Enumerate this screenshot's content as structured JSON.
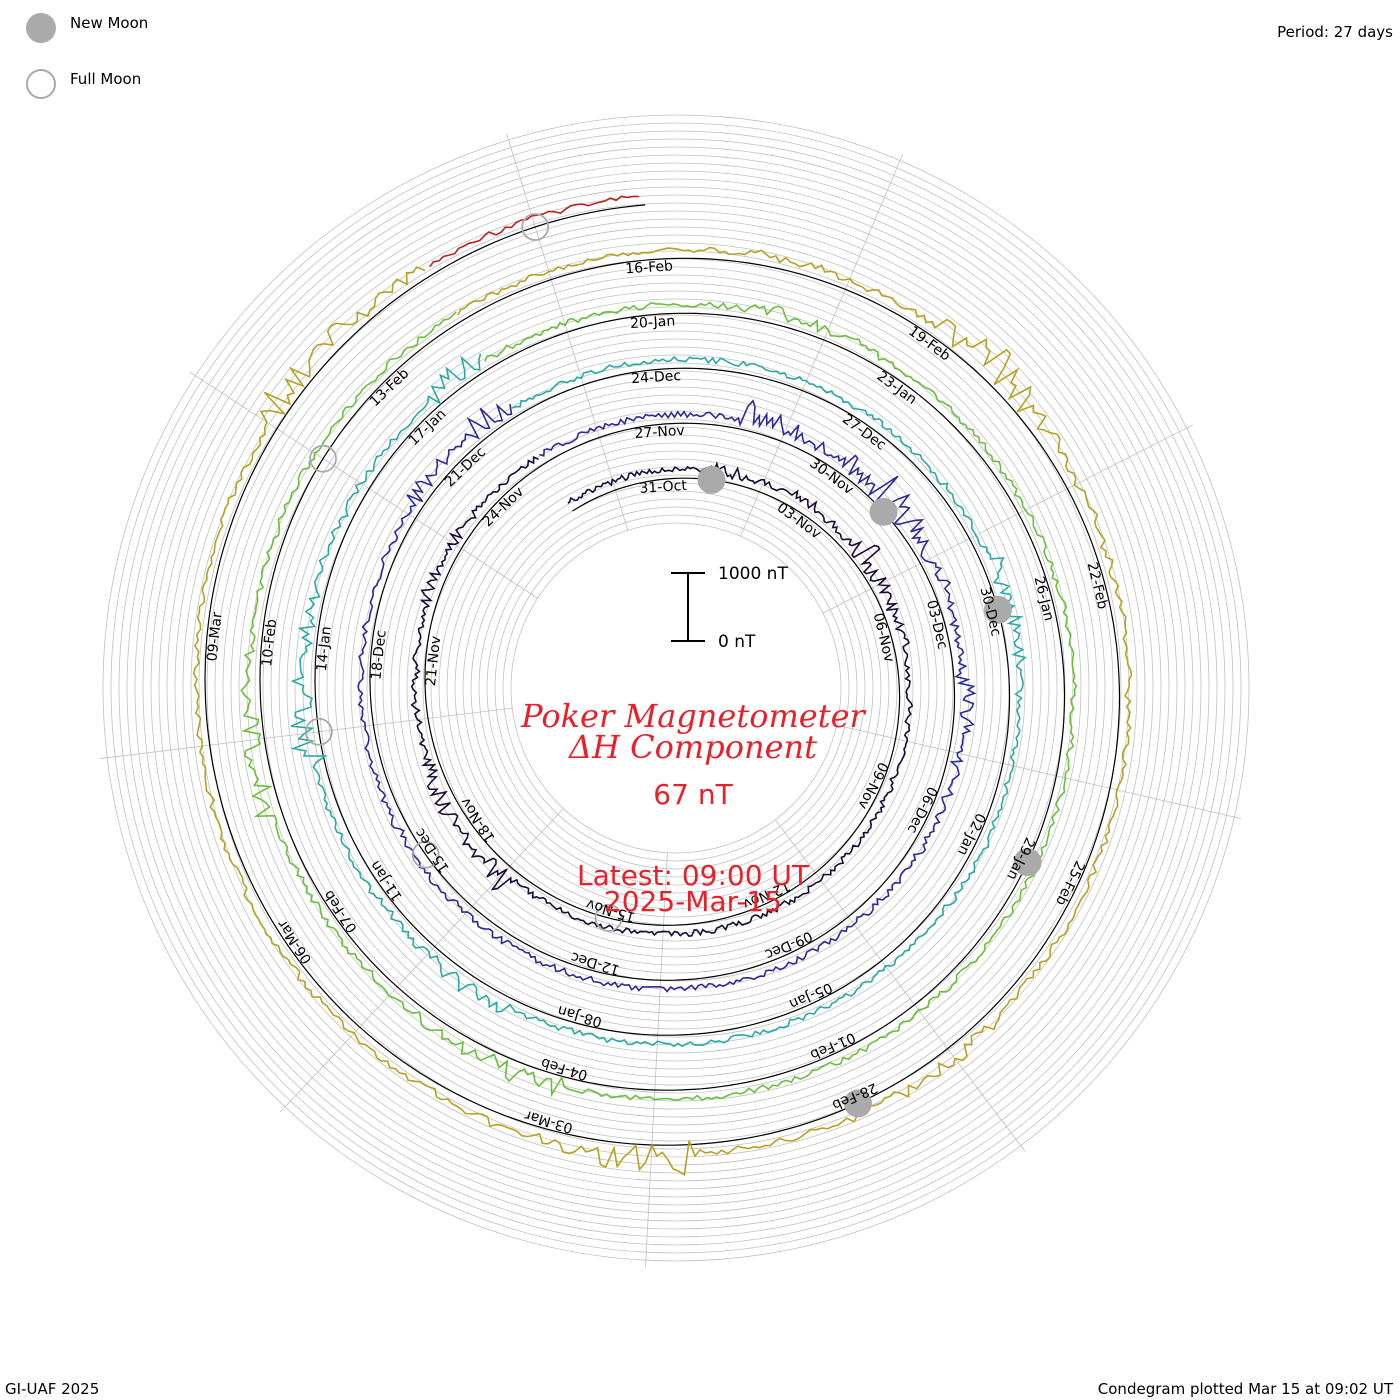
{
  "legend": {
    "new_moon_label": "New Moon",
    "full_moon_label": "Full Moon"
  },
  "header": {
    "period": "Period: 27 days"
  },
  "footer": {
    "credit": "GI-UAF 2025",
    "plotted": "Condegram plotted Mar 15 at 09:02 UT"
  },
  "scale_bar": {
    "top_label": "1000 nT",
    "bottom_label": "0 nT"
  },
  "title": {
    "line1": "Poker Magnetometer",
    "line2": "ΔH Component",
    "current_value": "67 nT",
    "latest": "Latest: 09:00 UT",
    "date": "2025-Mar-15"
  },
  "colors": {
    "title": "#e8202a",
    "moon_fill": "#aaaaaa",
    "grid": "#c0c0c0"
  },
  "chart_data": {
    "type": "line",
    "subtype": "condegram-spiral",
    "title": "Poker Magnetometer ΔH Component",
    "period_days": 27,
    "units": "nT",
    "scale_bar_nT": [
      0,
      1000
    ],
    "cycles": [
      {
        "start": "2024-10-29",
        "color": "#1a0a3a",
        "labels": [
          "31-Oct",
          "03-Nov",
          "06-Nov",
          "09-Nov",
          "12-Nov",
          "15-Nov",
          "18-Nov",
          "21-Nov",
          "24-Nov"
        ]
      },
      {
        "start": "2024-11-25",
        "color": "#2a2a9a",
        "labels": [
          "27-Nov",
          "30-Nov",
          "03-Dec",
          "06-Dec",
          "09-Dec",
          "12-Dec",
          "15-Dec",
          "18-Dec",
          "21-Dec"
        ]
      },
      {
        "start": "2024-12-22",
        "color": "#2aa8a8",
        "labels": [
          "24-Dec",
          "27-Dec",
          "30-Dec",
          "02-Jan",
          "05-Jan",
          "08-Jan",
          "11-Jan",
          "14-Jan",
          "17-Jan"
        ]
      },
      {
        "start": "2025-01-18",
        "color": "#6abf3a",
        "labels": [
          "20-Jan",
          "23-Jan",
          "26-Jan",
          "29-Jan",
          "01-Feb",
          "04-Feb",
          "07-Feb",
          "10-Feb",
          "13-Feb"
        ]
      },
      {
        "start": "2025-02-14",
        "color": "#b8a020",
        "labels": [
          "16-Feb",
          "19-Feb",
          "22-Feb",
          "25-Feb",
          "28-Feb",
          "03-Mar",
          "06-Mar",
          "09-Mar"
        ]
      },
      {
        "start": "2025-03-13",
        "color": "#c02020",
        "labels": []
      }
    ],
    "new_moons": [
      "2024-11-01",
      "2024-12-01",
      "2024-12-30",
      "2025-01-29",
      "2025-02-28"
    ],
    "full_moons": [
      "2024-11-15",
      "2024-12-15",
      "2025-01-13",
      "2025-02-12",
      "2025-03-14"
    ],
    "latest_value_nT": 67,
    "latest_time": "2025-03-15 09:00 UT"
  }
}
